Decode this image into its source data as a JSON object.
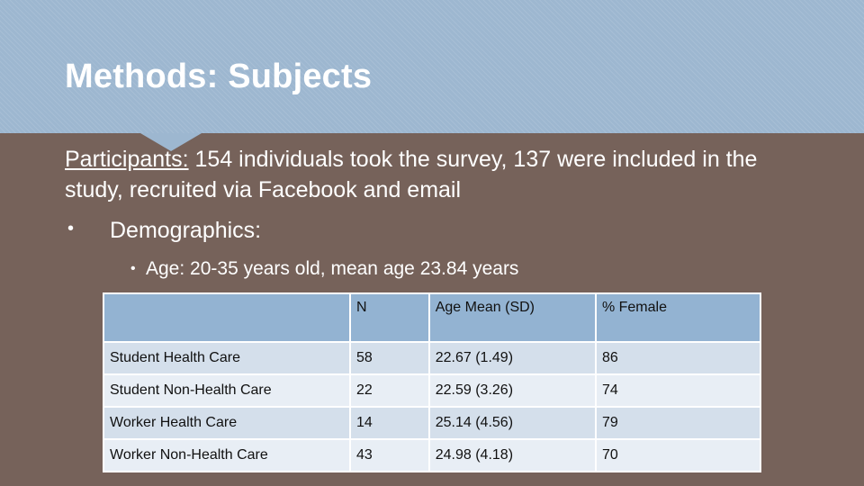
{
  "slide": {
    "title": "Methods: Subjects",
    "participants_label": "Participants:",
    "participants_text": " 154 individuals took the survey, 137 were included in the study, recruited via Facebook and email",
    "bullet_demographics": "Demographics:",
    "bullet_age": "Age: 20-35 years old, mean age 23.84 years",
    "colors": {
      "header": "#9db7d0",
      "background": "#76625a",
      "table_header": "#93b3d2"
    }
  },
  "table": {
    "headers": [
      "",
      "N",
      "Age Mean (SD)",
      "% Female"
    ],
    "rows": [
      [
        "Student Health Care",
        "58",
        "22.67 (1.49)",
        "86"
      ],
      [
        "Student Non-Health Care",
        "22",
        "22.59 (3.26)",
        "74"
      ],
      [
        "Worker Health Care",
        "14",
        "25.14 (4.56)",
        "79"
      ],
      [
        "Worker Non-Health Care",
        "43",
        "24.98 (4.18)",
        "70"
      ]
    ]
  }
}
